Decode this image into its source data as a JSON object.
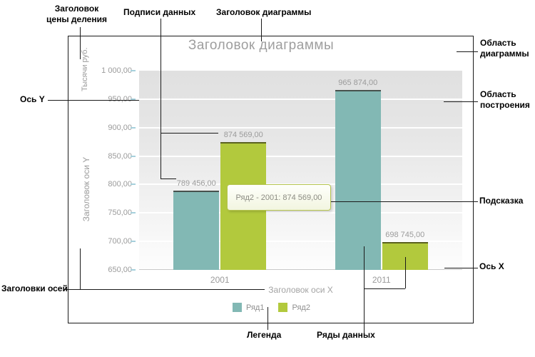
{
  "chart_data": {
    "type": "bar",
    "title": "Заголовок диаграммы",
    "x_axis_title": "Заголовок оси X",
    "y_axis_title": "Заголовок оси Y",
    "unit_title": "Тысячи руб.",
    "categories": [
      "2001",
      "2011"
    ],
    "series": [
      {
        "name": "Ряд1",
        "color": "#82b8b4",
        "top_stroke": "#47514d",
        "values": [
          789456,
          965874
        ],
        "labels": [
          "789 456,00",
          "965 874,00"
        ]
      },
      {
        "name": "Ряд2",
        "color": "#b2c93d",
        "top_stroke": "#5a611f",
        "values": [
          874569,
          698745
        ],
        "labels": [
          "874 569,00",
          "698 745,00"
        ]
      }
    ],
    "ylim": [
      650,
      1000
    ],
    "yticks": {
      "values": [
        1000,
        950,
        900,
        850,
        800,
        750,
        700,
        650
      ],
      "labels": [
        "1 000,00",
        "950,00",
        "900,00",
        "850,00",
        "800,00",
        "750,00",
        "700,00",
        "650,00"
      ]
    },
    "grid": "horizontal-bands",
    "legend_position": "bottom"
  },
  "tooltip": {
    "text": "Ряд2 - 2001: 874 569,00",
    "border_color": "#b5c44f",
    "text_color": "#8c8c84"
  },
  "annotations": [
    {
      "id": "scale-unit-title",
      "lines": [
        "Заголовок",
        "цены деления"
      ]
    },
    {
      "id": "data-labels",
      "lines": [
        "Подписи данных"
      ]
    },
    {
      "id": "chart-title",
      "lines": [
        "Заголовок диаграммы"
      ]
    },
    {
      "id": "chart-area",
      "lines": [
        "Область",
        "диаграммы"
      ]
    },
    {
      "id": "plot-area",
      "lines": [
        "Область",
        "построения"
      ]
    },
    {
      "id": "y-axis",
      "lines": [
        "Ось Y"
      ]
    },
    {
      "id": "tooltip",
      "lines": [
        "Подсказка"
      ]
    },
    {
      "id": "x-axis",
      "lines": [
        "Ось X"
      ]
    },
    {
      "id": "axis-titles",
      "lines": [
        "Заголовки осей"
      ]
    },
    {
      "id": "legend",
      "lines": [
        "Легенда"
      ]
    },
    {
      "id": "data-series",
      "lines": [
        "Ряды данных"
      ]
    }
  ],
  "colors": {
    "chart_border": "#1a1a1a",
    "annotation": "#000000",
    "grid_text": "#9b9b9b",
    "tick_mark": "#a6d0dc",
    "axis_line": "#c9c9c9"
  }
}
